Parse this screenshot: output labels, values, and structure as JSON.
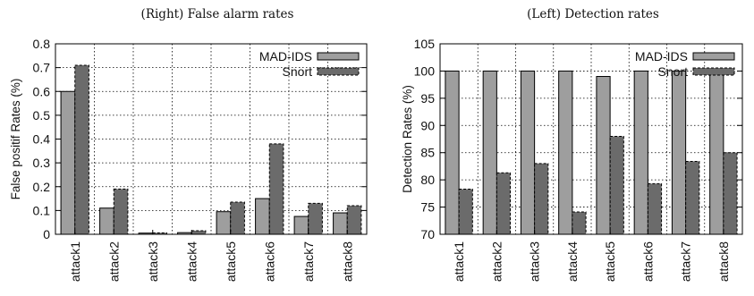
{
  "chart_data": [
    {
      "type": "bar",
      "title": "(Right) False alarm rates",
      "xlabel": "",
      "ylabel": "False positif Rates (%)",
      "ylim": [
        0,
        0.8
      ],
      "yticks": [
        "0",
        "0.1",
        "0.2",
        "0.3",
        "0.4",
        "0.5",
        "0.6",
        "0.7",
        "0.8"
      ],
      "categories": [
        "attack1",
        "attack2",
        "attack3",
        "attack4",
        "attack5",
        "attack6",
        "attack7",
        "attack8"
      ],
      "series": [
        {
          "name": "MAD-IDS",
          "values": [
            0.6,
            0.11,
            0.005,
            0.007,
            0.095,
            0.15,
            0.075,
            0.09
          ],
          "color": "#9e9e9e",
          "dashed": false
        },
        {
          "name": "Snort",
          "values": [
            0.71,
            0.19,
            0.006,
            0.015,
            0.135,
            0.38,
            0.13,
            0.12
          ],
          "color": "#6b6b6b",
          "dashed": true
        }
      ],
      "legend": "top-right",
      "grid": true
    },
    {
      "type": "bar",
      "title": "(Left) Detection rates",
      "xlabel": "",
      "ylabel": "Detection Rates (%)",
      "ylim": [
        70,
        105
      ],
      "yticks": [
        "70",
        "75",
        "80",
        "85",
        "90",
        "95",
        "100",
        "105"
      ],
      "categories": [
        "attack1",
        "attack2",
        "attack3",
        "attack4",
        "attack5",
        "attack6",
        "attack7",
        "attack8"
      ],
      "series": [
        {
          "name": "MAD-IDS",
          "values": [
            100,
            100,
            100,
            100,
            99,
            100,
            100,
            100
          ],
          "color": "#9e9e9e",
          "dashed": false
        },
        {
          "name": "Snort",
          "values": [
            78.3,
            81.3,
            83,
            74.1,
            88,
            79.3,
            83.4,
            85
          ],
          "color": "#6b6b6b",
          "dashed": true
        }
      ],
      "legend": "top-right",
      "grid": true
    }
  ]
}
